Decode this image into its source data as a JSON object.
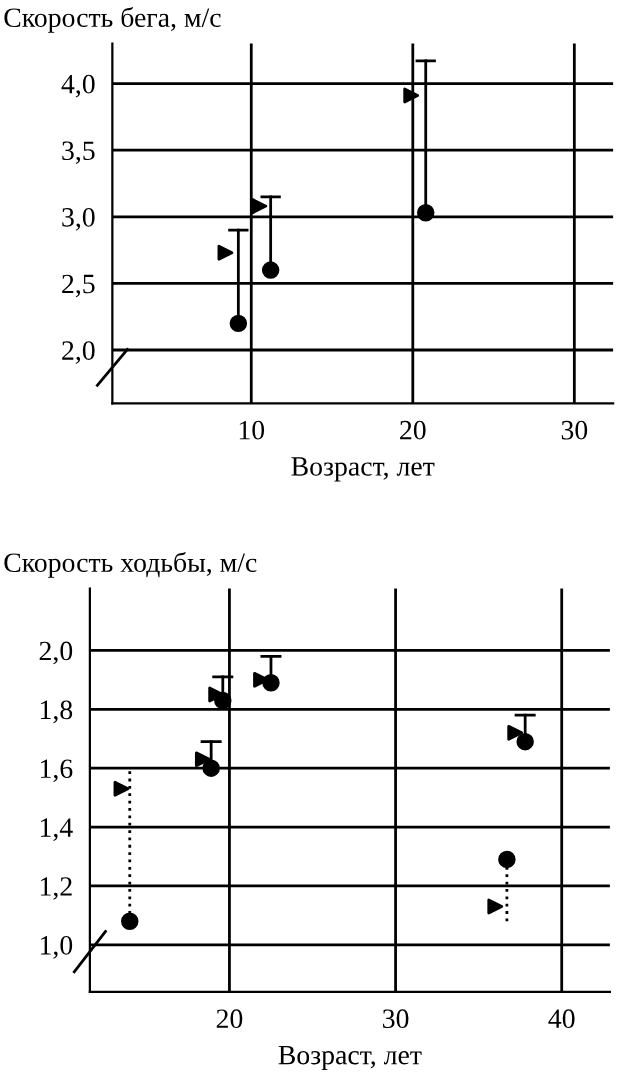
{
  "chart_data": [
    {
      "type": "scatter",
      "ylabel": "Скорость бега, м/с",
      "xlabel": "Возраст, лет",
      "xlim": [
        1.4,
        32.4
      ],
      "ylim": [
        1.6,
        4.3
      ],
      "xticks": [
        10,
        20,
        30
      ],
      "yticks": [
        {
          "value": 2.0,
          "label": "2,0"
        },
        {
          "value": 2.5,
          "label": "2,5"
        },
        {
          "value": 3.0,
          "label": "3,0"
        },
        {
          "value": 3.5,
          "label": "3,5"
        },
        {
          "value": 4.0,
          "label": "4,0"
        }
      ],
      "grid": true,
      "legend": false,
      "series": [
        {
          "color": "#000000",
          "marker": "circle",
          "x": [
            9.2,
            11.2,
            20.8
          ],
          "values": [
            2.2,
            2.6,
            3.03
          ],
          "errors": [
            [
              2.2,
              2.9
            ],
            [
              2.6,
              3.15
            ],
            [
              3.03,
              4.17
            ]
          ]
        },
        {
          "color": "#000000",
          "marker": "triangle",
          "x": [
            8.4,
            10.5,
            19.9
          ],
          "values": [
            2.73,
            3.08,
            3.91
          ]
        }
      ]
    },
    {
      "type": "scatter",
      "ylabel": "Скорость ходьбы, м/с",
      "xlabel": "Возраст, лет",
      "xlim": [
        11.6,
        42.9
      ],
      "ylim": [
        0.84,
        2.21
      ],
      "xticks": [
        20,
        30,
        40
      ],
      "yticks": [
        {
          "value": 1.0,
          "label": "1,0"
        },
        {
          "value": 1.2,
          "label": "1,2"
        },
        {
          "value": 1.4,
          "label": "1,4"
        },
        {
          "value": 1.6,
          "label": "1,6"
        },
        {
          "value": 1.8,
          "label": "1,8"
        },
        {
          "value": 2.0,
          "label": "2,0"
        }
      ],
      "grid": true,
      "legend": false,
      "series": [
        {
          "color": "#000000",
          "marker": "circle",
          "x": [
            14.0,
            18.9,
            19.6,
            22.5,
            37.8,
            36.7
          ],
          "values": [
            1.08,
            1.6,
            1.83,
            1.89,
            1.69,
            1.29
          ],
          "errors": [
            null,
            [
              1.6,
              1.69
            ],
            [
              1.83,
              1.91
            ],
            [
              1.89,
              1.98
            ],
            [
              1.69,
              1.78
            ],
            null
          ]
        },
        {
          "color": "#000000",
          "marker": "triangle",
          "x": [
            13.5,
            18.4,
            19.2,
            21.9,
            37.2,
            36.0
          ],
          "values": [
            1.53,
            1.63,
            1.85,
            1.9,
            1.72,
            1.13
          ]
        },
        {
          "type": "line",
          "color": "#000000",
          "line_style": "dotted",
          "marker": "none",
          "x": [
            14.0,
            14.0
          ],
          "values": [
            1.08,
            1.59
          ]
        },
        {
          "type": "line",
          "color": "#000000",
          "line_style": "dotted",
          "marker": "none",
          "x": [
            36.7,
            36.7
          ],
          "values": [
            1.08,
            1.29
          ]
        }
      ]
    }
  ]
}
